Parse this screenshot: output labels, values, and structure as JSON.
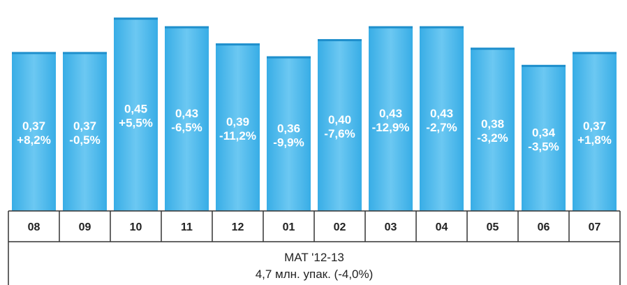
{
  "chart_data": {
    "type": "bar",
    "categories": [
      "08",
      "09",
      "10",
      "11",
      "12",
      "01",
      "02",
      "03",
      "04",
      "05",
      "06",
      "07"
    ],
    "values": [
      0.37,
      0.37,
      0.45,
      0.43,
      0.39,
      0.36,
      0.4,
      0.43,
      0.43,
      0.38,
      0.34,
      0.37
    ],
    "value_labels": [
      "0,37",
      "0,37",
      "0,45",
      "0,43",
      "0,39",
      "0,36",
      "0,40",
      "0,43",
      "0,43",
      "0,38",
      "0,34",
      "0,37"
    ],
    "change_labels": [
      "+8,2%",
      "-0,5%",
      "+5,5%",
      "-6,5%",
      "-11,2%",
      "-9,9%",
      "-7,6%",
      "-12,9%",
      "-2,7%",
      "-3,2%",
      "-3,5%",
      "+1,8%"
    ],
    "footer": {
      "line1": "MAT '12-13",
      "line2": "4,7 млн. упак. (-4,0%)"
    },
    "ylim": [
      0,
      0.465
    ],
    "colors": {
      "bar": "#38ade6",
      "bar_light": "#6cc8f2",
      "border": "#333333"
    }
  }
}
